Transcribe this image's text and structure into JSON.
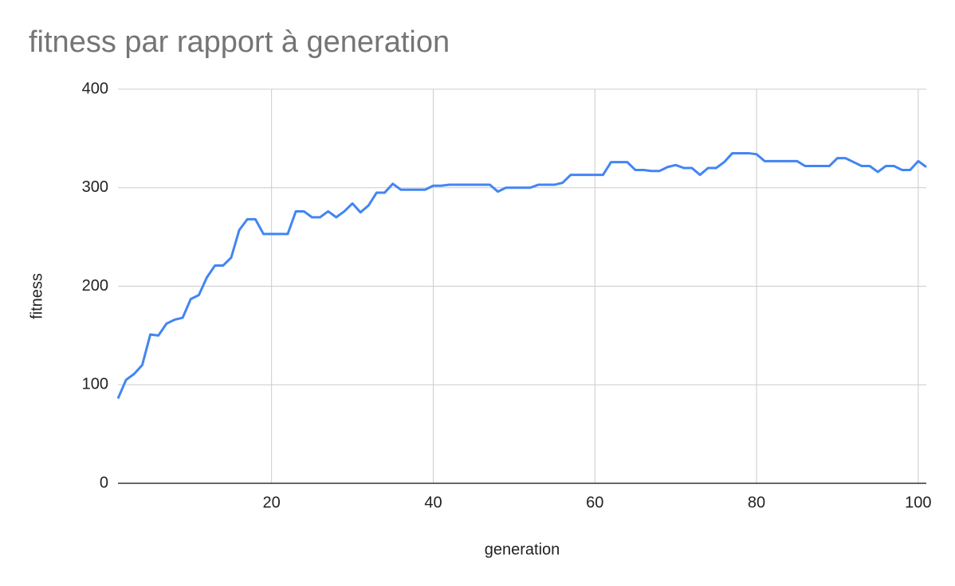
{
  "chart_data": {
    "type": "line",
    "title": "fitness par rapport à generation",
    "x_label": "generation",
    "y_label": "fitness",
    "x": [
      1,
      2,
      3,
      4,
      5,
      6,
      7,
      8,
      9,
      10,
      11,
      12,
      13,
      14,
      15,
      16,
      17,
      18,
      19,
      20,
      21,
      22,
      23,
      24,
      25,
      26,
      27,
      28,
      29,
      30,
      31,
      32,
      33,
      34,
      35,
      36,
      37,
      38,
      39,
      40,
      41,
      42,
      43,
      44,
      45,
      46,
      47,
      48,
      49,
      50,
      51,
      52,
      53,
      54,
      55,
      56,
      57,
      58,
      59,
      60,
      61,
      62,
      63,
      64,
      65,
      66,
      67,
      68,
      69,
      70,
      71,
      72,
      73,
      74,
      75,
      76,
      77,
      78,
      79,
      80,
      81,
      82,
      83,
      84,
      85,
      86,
      87,
      88,
      89,
      90,
      91,
      92,
      93,
      94,
      95,
      96,
      97,
      98,
      99,
      100,
      101
    ],
    "values": [
      86,
      105,
      111,
      120,
      151,
      150,
      162,
      166,
      168,
      187,
      191,
      209,
      221,
      221,
      229,
      257,
      268,
      268,
      253,
      253,
      253,
      253,
      276,
      276,
      270,
      270,
      276,
      270,
      276,
      284,
      275,
      282,
      295,
      295,
      304,
      298,
      298,
      298,
      298,
      302,
      302,
      303,
      303,
      303,
      303,
      303,
      303,
      296,
      300,
      300,
      300,
      300,
      303,
      303,
      303,
      305,
      313,
      313,
      313,
      313,
      313,
      326,
      326,
      326,
      318,
      318,
      317,
      317,
      321,
      323,
      320,
      320,
      313,
      320,
      320,
      326,
      335,
      335,
      335,
      334,
      327,
      327,
      327,
      327,
      327,
      322,
      322,
      322,
      322,
      330,
      330,
      326,
      322,
      322,
      316,
      322,
      322,
      318,
      318,
      327,
      321
    ],
    "color": "#4285f4",
    "xlim": [
      1,
      101
    ],
    "xticks": [
      20,
      40,
      60,
      80,
      100
    ],
    "ylim": [
      0,
      400
    ],
    "yticks": [
      0,
      100,
      200,
      300,
      400
    ],
    "grid": true
  }
}
